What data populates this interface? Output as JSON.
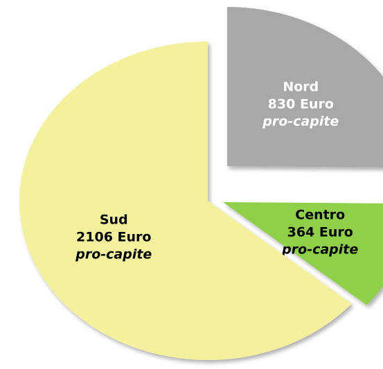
{
  "chart_data": {
    "type": "pie",
    "categories": [
      "Nord",
      "Centro",
      "Sud"
    ],
    "values": [
      830,
      364,
      2106
    ],
    "value_labels": [
      "830 Euro",
      "364 Euro",
      "2106 Euro"
    ],
    "unit_note": "pro-capite",
    "colors": [
      "#a8a8a8",
      "#8fd04a",
      "#f4f19c"
    ],
    "label_colors": [
      "#ffffff",
      "#000000",
      "#000000"
    ]
  }
}
